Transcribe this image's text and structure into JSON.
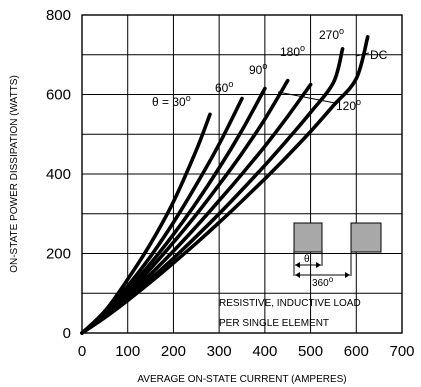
{
  "chart_data": {
    "type": "line",
    "xlabel": "AVERAGE ON-STATE  CURRENT (AMPERES)",
    "ylabel": "ON-STATE POWER DISSIPATION (WATTS)",
    "xlim": [
      0,
      700
    ],
    "ylim": [
      0,
      800
    ],
    "xticks": [
      0,
      100,
      200,
      300,
      400,
      500,
      600,
      700
    ],
    "yticks": [
      0,
      200,
      400,
      600,
      800
    ],
    "x_tick_labels": [
      "0",
      "100",
      "200",
      "300",
      "400",
      "500",
      "600",
      "700"
    ],
    "y_tick_labels": [
      "0",
      "200",
      "400",
      "600",
      "800"
    ],
    "grid": true,
    "series": [
      {
        "name": "θ = 30°",
        "x": [
          0,
          50,
          100,
          150,
          200,
          250,
          280
        ],
        "y": [
          0,
          55,
          135,
          225,
          330,
          460,
          550
        ]
      },
      {
        "name": "60°",
        "x": [
          0,
          50,
          100,
          150,
          200,
          250,
          300,
          350
        ],
        "y": [
          0,
          50,
          118,
          193,
          278,
          373,
          475,
          590
        ]
      },
      {
        "name": "90°",
        "x": [
          0,
          50,
          100,
          150,
          200,
          250,
          300,
          350,
          400
        ],
        "y": [
          0,
          47,
          108,
          175,
          248,
          328,
          415,
          510,
          615
        ]
      },
      {
        "name": "120°",
        "x": [
          0,
          50,
          100,
          150,
          200,
          250,
          300,
          350,
          400,
          450
        ],
        "y": [
          0,
          45,
          100,
          162,
          228,
          298,
          373,
          452,
          538,
          635
        ]
      },
      {
        "name": "180°",
        "x": [
          0,
          50,
          100,
          150,
          200,
          250,
          300,
          350,
          400,
          450,
          500
        ],
        "y": [
          0,
          43,
          93,
          148,
          206,
          268,
          333,
          400,
          470,
          545,
          625
        ]
      },
      {
        "name": "270°",
        "x": [
          0,
          50,
          100,
          150,
          200,
          250,
          300,
          350,
          400,
          450,
          500,
          550,
          570
        ],
        "y": [
          0,
          41,
          87,
          136,
          188,
          243,
          300,
          360,
          422,
          487,
          555,
          630,
          715
        ]
      },
      {
        "name": "DC",
        "x": [
          0,
          50,
          100,
          150,
          200,
          250,
          300,
          350,
          400,
          450,
          500,
          550,
          600,
          625
        ],
        "y": [
          0,
          39,
          82,
          128,
          176,
          226,
          278,
          332,
          388,
          446,
          507,
          572,
          640,
          745
        ]
      }
    ],
    "curve_labels": {
      "c30": {
        "theta": "θ = 30",
        "deg": "o"
      },
      "c60": {
        "num": "60",
        "deg": "o"
      },
      "c90": {
        "num": "90",
        "deg": "o"
      },
      "c120": {
        "num": "120",
        "deg": "o"
      },
      "c180": {
        "num": "180",
        "deg": "o"
      },
      "c270": {
        "num": "270",
        "deg": "o"
      },
      "dc": "DC"
    },
    "inset": {
      "theta": "θ",
      "period": "360",
      "deg": "o"
    },
    "annotation": {
      "line1": "RESISTIVE, INDUCTIVE LOAD",
      "line2": "PER SINGLE ELEMENT"
    },
    "colors": {
      "line": "#000000",
      "pulse_fill": "#a8a8a8",
      "background": "#ffffff"
    }
  }
}
